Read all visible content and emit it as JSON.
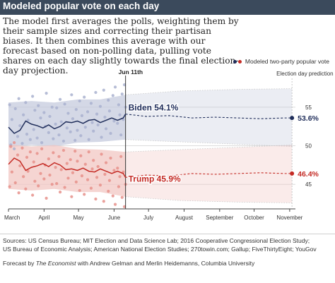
{
  "header": {
    "title": "Modeled popular vote on each day",
    "description": "The model first averages the polls, weighting them by their sample sizes and correcting their partisan biases. It then combines this average with our forecast based on non-polling data, pulling vote shares on each day slightly towards the final election-day projection."
  },
  "legend": {
    "label": "Modeled two-party popular vote"
  },
  "footer": {
    "sources_line1": "Sources: US Census Bureau; MIT Election and Data Science Lab; 2016 Cooperative Congressional Election Study;",
    "sources_line2": "US Bureau of Economic Analysis; American National Election Studies; 270towin.com; Gallup; FiveThirtyEight; YouGov",
    "credit_prefix": "Forecast by ",
    "credit_org": "The Economist",
    "credit_suffix": " with Andrew Gelman and Merlin Heidemanns, Columbia University"
  },
  "colors": {
    "dem": "#1f2d5a",
    "dem_band": "#c5cbdd",
    "dem_dot": "#a9b2cf",
    "rep": "#c42a24",
    "rep_band": "#f2c7c3",
    "rep_dot": "#e6918b",
    "header_bg": "#3b4a5c"
  },
  "chart_data": {
    "type": "line",
    "x_months": [
      "March",
      "April",
      "May",
      "June",
      "July",
      "August",
      "September",
      "October",
      "November"
    ],
    "today_label": "Jun 11th",
    "today_day": 102,
    "election_label": "Election day prediction",
    "election_day": 247,
    "ylim": [
      42,
      58
    ],
    "yticks": [
      45,
      50,
      55
    ],
    "grid": true,
    "series": [
      {
        "name": "Biden",
        "current_label": "Biden 54.1%",
        "election_label": "53.6%",
        "current": 54.1,
        "election": 53.6,
        "history": [
          [
            0,
            52.4
          ],
          [
            5,
            51.6
          ],
          [
            10,
            52.0
          ],
          [
            15,
            53.2
          ],
          [
            20,
            52.8
          ],
          [
            25,
            52.6
          ],
          [
            30,
            52.3
          ],
          [
            35,
            52.7
          ],
          [
            40,
            52.2
          ],
          [
            45,
            52.5
          ],
          [
            50,
            53.1
          ],
          [
            55,
            53.0
          ],
          [
            60,
            53.2
          ],
          [
            65,
            52.9
          ],
          [
            70,
            53.3
          ],
          [
            75,
            53.4
          ],
          [
            80,
            53.0
          ],
          [
            85,
            53.3
          ],
          [
            90,
            53.6
          ],
          [
            95,
            53.3
          ],
          [
            100,
            53.6
          ],
          [
            102,
            54.1
          ]
        ],
        "projection": [
          [
            102,
            54.1
          ],
          [
            120,
            53.8
          ],
          [
            140,
            53.9
          ],
          [
            160,
            53.6
          ],
          [
            180,
            53.7
          ],
          [
            200,
            53.6
          ],
          [
            220,
            53.5
          ],
          [
            240,
            53.6
          ],
          [
            247,
            53.6
          ]
        ],
        "band_history": [
          [
            0,
            49.8,
            55.6
          ],
          [
            20,
            50.1,
            55.8
          ],
          [
            40,
            49.9,
            55.6
          ],
          [
            60,
            50.4,
            56.0
          ],
          [
            80,
            50.5,
            56.0
          ],
          [
            102,
            50.8,
            56.6
          ]
        ],
        "band_projection": [
          [
            102,
            50.8,
            56.6
          ],
          [
            150,
            50.5,
            57.1
          ],
          [
            200,
            50.2,
            57.3
          ],
          [
            247,
            49.9,
            57.4
          ]
        ],
        "polls": [
          [
            1,
            55.3
          ],
          [
            2,
            50.1
          ],
          [
            3,
            53.4
          ],
          [
            5,
            49.6
          ],
          [
            6,
            54.8
          ],
          [
            8,
            51.2
          ],
          [
            9,
            56.1
          ],
          [
            10,
            52.6
          ],
          [
            12,
            50.3
          ],
          [
            13,
            54.0
          ],
          [
            15,
            55.6
          ],
          [
            16,
            51.5
          ],
          [
            17,
            53.3
          ],
          [
            19,
            50.8
          ],
          [
            21,
            56.4
          ],
          [
            22,
            52.1
          ],
          [
            23,
            54.6
          ],
          [
            25,
            51.0
          ],
          [
            26,
            55.2
          ],
          [
            28,
            53.6
          ],
          [
            29,
            50.4
          ],
          [
            31,
            54.3
          ],
          [
            32,
            52.5
          ],
          [
            33,
            56.8
          ],
          [
            35,
            51.7
          ],
          [
            36,
            53.8
          ],
          [
            38,
            55.0
          ],
          [
            39,
            50.9
          ],
          [
            41,
            52.8
          ],
          [
            42,
            54.9
          ],
          [
            44,
            51.4
          ],
          [
            45,
            56.0
          ],
          [
            46,
            53.1
          ],
          [
            48,
            50.6
          ],
          [
            49,
            55.4
          ],
          [
            51,
            52.3
          ],
          [
            52,
            54.2
          ],
          [
            54,
            51.8
          ],
          [
            55,
            56.6
          ],
          [
            56,
            53.5
          ],
          [
            58,
            50.7
          ],
          [
            59,
            54.7
          ],
          [
            60,
            52.0
          ],
          [
            62,
            55.8
          ],
          [
            63,
            51.3
          ],
          [
            64,
            53.9
          ],
          [
            66,
            56.3
          ],
          [
            67,
            52.4
          ],
          [
            69,
            54.4
          ],
          [
            70,
            50.8
          ],
          [
            72,
            55.5
          ],
          [
            73,
            53.0
          ],
          [
            74,
            51.9
          ],
          [
            76,
            56.9
          ],
          [
            77,
            54.1
          ],
          [
            78,
            52.7
          ],
          [
            80,
            55.1
          ],
          [
            81,
            51.1
          ],
          [
            83,
            57.2
          ],
          [
            84,
            53.7
          ],
          [
            85,
            52.2
          ],
          [
            87,
            55.9
          ],
          [
            88,
            54.5
          ],
          [
            89,
            51.6
          ],
          [
            91,
            56.5
          ],
          [
            92,
            53.2
          ],
          [
            93,
            57.6
          ],
          [
            95,
            52.9
          ],
          [
            96,
            55.3
          ],
          [
            97,
            54.0
          ],
          [
            98,
            51.4
          ],
          [
            99,
            56.7
          ],
          [
            100,
            53.4
          ],
          [
            101,
            57.9
          ],
          [
            102,
            55.0
          ]
        ]
      },
      {
        "name": "Trump",
        "current_label": "Trump 45.9%",
        "election_label": "46.4%",
        "current": 45.9,
        "election": 46.4,
        "history": [
          [
            0,
            47.6
          ],
          [
            5,
            48.4
          ],
          [
            10,
            48.0
          ],
          [
            15,
            46.8
          ],
          [
            20,
            47.2
          ],
          [
            25,
            47.4
          ],
          [
            30,
            47.7
          ],
          [
            35,
            47.3
          ],
          [
            40,
            47.8
          ],
          [
            45,
            47.5
          ],
          [
            50,
            46.9
          ],
          [
            55,
            47.0
          ],
          [
            60,
            46.8
          ],
          [
            65,
            47.1
          ],
          [
            70,
            46.7
          ],
          [
            75,
            46.6
          ],
          [
            80,
            47.0
          ],
          [
            85,
            46.7
          ],
          [
            90,
            46.4
          ],
          [
            95,
            46.7
          ],
          [
            100,
            46.4
          ],
          [
            102,
            45.9
          ]
        ],
        "projection": [
          [
            102,
            45.9
          ],
          [
            120,
            46.2
          ],
          [
            140,
            46.1
          ],
          [
            160,
            46.4
          ],
          [
            180,
            46.3
          ],
          [
            200,
            46.4
          ],
          [
            220,
            46.5
          ],
          [
            240,
            46.4
          ],
          [
            247,
            46.4
          ]
        ],
        "band_history": [
          [
            0,
            44.4,
            50.2
          ],
          [
            20,
            44.2,
            49.9
          ],
          [
            40,
            44.4,
            50.1
          ],
          [
            60,
            44.0,
            49.6
          ],
          [
            80,
            44.0,
            49.5
          ],
          [
            102,
            43.4,
            49.2
          ]
        ],
        "band_projection": [
          [
            102,
            43.4,
            49.2
          ],
          [
            150,
            42.9,
            49.5
          ],
          [
            200,
            42.7,
            49.8
          ],
          [
            247,
            42.6,
            50.1
          ]
        ],
        "polls": [
          [
            1,
            44.7
          ],
          [
            2,
            49.9
          ],
          [
            3,
            46.6
          ],
          [
            5,
            50.4
          ],
          [
            6,
            45.2
          ],
          [
            8,
            48.8
          ],
          [
            9,
            43.9
          ],
          [
            10,
            47.4
          ],
          [
            12,
            49.7
          ],
          [
            13,
            46.0
          ],
          [
            15,
            44.4
          ],
          [
            16,
            48.5
          ],
          [
            17,
            46.7
          ],
          [
            19,
            49.2
          ],
          [
            21,
            43.6
          ],
          [
            22,
            47.9
          ],
          [
            23,
            45.4
          ],
          [
            25,
            49.0
          ],
          [
            26,
            44.8
          ],
          [
            28,
            46.4
          ],
          [
            29,
            49.6
          ],
          [
            31,
            45.7
          ],
          [
            32,
            47.5
          ],
          [
            33,
            43.2
          ],
          [
            35,
            48.3
          ],
          [
            36,
            46.2
          ],
          [
            38,
            45.0
          ],
          [
            39,
            49.1
          ],
          [
            41,
            47.2
          ],
          [
            42,
            45.1
          ],
          [
            44,
            48.6
          ],
          [
            45,
            44.0
          ],
          [
            46,
            46.9
          ],
          [
            48,
            49.4
          ],
          [
            49,
            44.6
          ],
          [
            51,
            47.7
          ],
          [
            52,
            45.8
          ],
          [
            54,
            48.2
          ],
          [
            55,
            43.4
          ],
          [
            56,
            46.5
          ],
          [
            58,
            49.3
          ],
          [
            59,
            45.3
          ],
          [
            60,
            48.0
          ],
          [
            62,
            44.2
          ],
          [
            63,
            48.7
          ],
          [
            64,
            46.1
          ],
          [
            66,
            43.7
          ],
          [
            67,
            47.6
          ],
          [
            69,
            45.6
          ],
          [
            70,
            49.2
          ],
          [
            72,
            44.5
          ],
          [
            73,
            47.0
          ],
          [
            74,
            48.1
          ],
          [
            76,
            43.1
          ],
          [
            77,
            45.9
          ],
          [
            78,
            47.3
          ],
          [
            80,
            44.9
          ],
          [
            81,
            48.9
          ],
          [
            83,
            42.8
          ],
          [
            84,
            46.3
          ],
          [
            85,
            47.8
          ],
          [
            87,
            44.1
          ],
          [
            88,
            45.5
          ],
          [
            89,
            48.4
          ],
          [
            91,
            43.5
          ],
          [
            92,
            46.8
          ],
          [
            93,
            42.4
          ],
          [
            95,
            47.1
          ],
          [
            96,
            44.7
          ],
          [
            97,
            46.0
          ],
          [
            98,
            48.6
          ],
          [
            99,
            43.3
          ],
          [
            100,
            46.6
          ],
          [
            101,
            42.1
          ],
          [
            102,
            45.0
          ]
        ]
      }
    ]
  }
}
